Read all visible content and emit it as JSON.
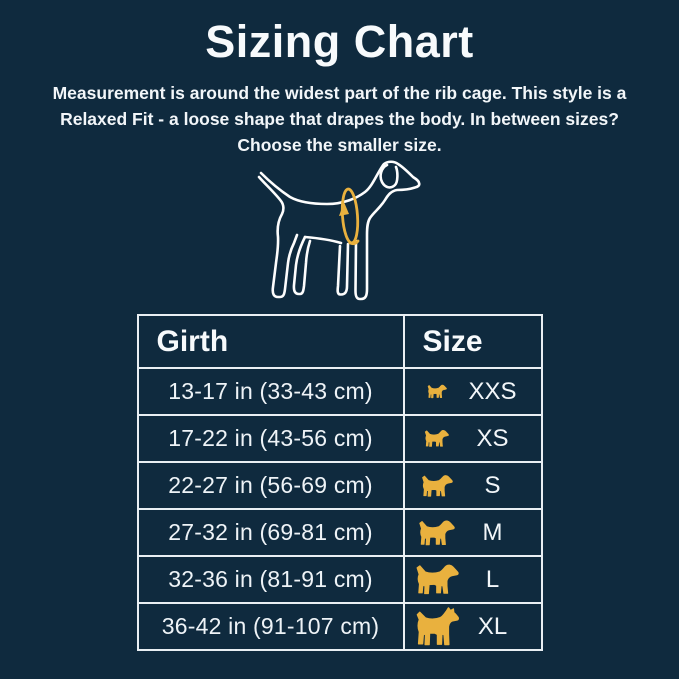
{
  "page": {
    "title": "Sizing Chart",
    "subtitle_lines": [
      "Measurement is around the widest part of the rib cage. This style is a",
      "Relaxed Fit - a loose shape that drapes the body. In between sizes?",
      "Choose the smaller size."
    ]
  },
  "diagram": {
    "name": "dog-girth-measurement-diagram",
    "annotation": "girth-measure-loop-with-up-arrow"
  },
  "colors": {
    "background": "#0f2a3e",
    "accent_gold": "#e9b13e",
    "text": "#ffffff",
    "table_border": "#e9eff3"
  },
  "table": {
    "headers": {
      "girth": "Girth",
      "size": "Size"
    },
    "rows": [
      {
        "girth": "13-17 in (33-43 cm)",
        "size": "XXS",
        "icon": "dog-icon-xxs"
      },
      {
        "girth": "17-22 in (43-56 cm)",
        "size": "XS",
        "icon": "dog-icon-xs"
      },
      {
        "girth": "22-27 in (56-69 cm)",
        "size": "S",
        "icon": "dog-icon-s"
      },
      {
        "girth": "27-32 in (69-81 cm)",
        "size": "M",
        "icon": "dog-icon-m"
      },
      {
        "girth": "32-36 in (81-91 cm)",
        "size": "L",
        "icon": "dog-icon-l"
      },
      {
        "girth": "36-42 in (91-107 cm)",
        "size": "XL",
        "icon": "dog-icon-xl"
      }
    ]
  }
}
